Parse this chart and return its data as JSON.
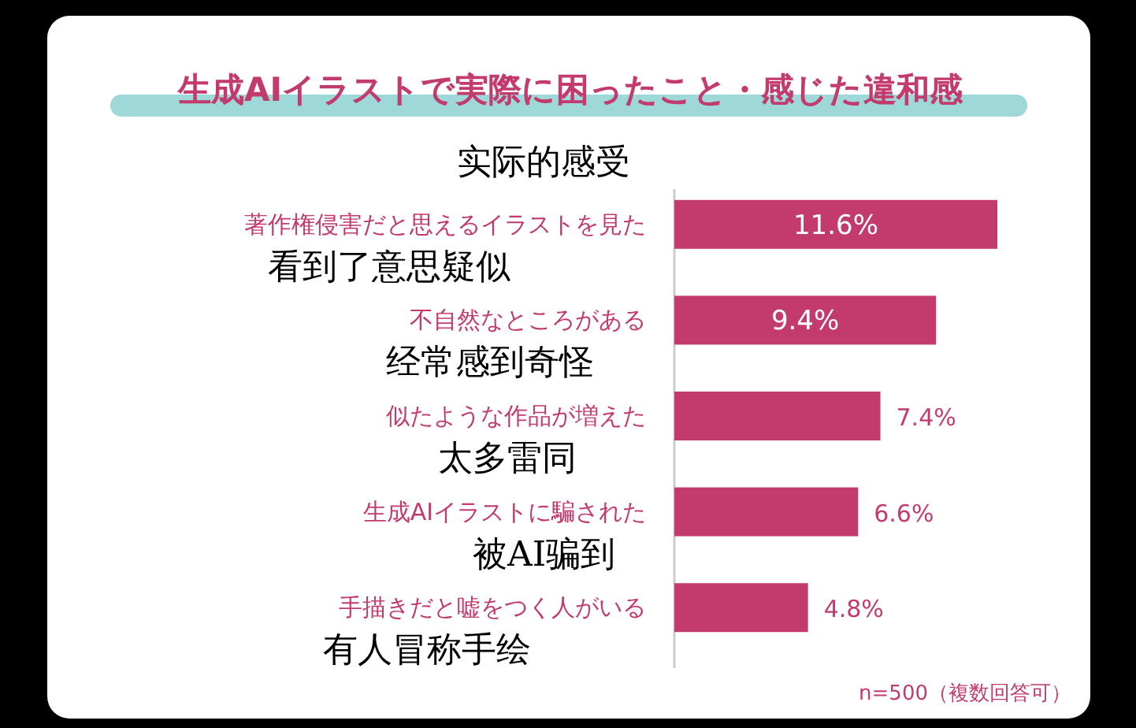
{
  "chart_data": {
    "type": "bar",
    "orientation": "horizontal",
    "title": "生成AIイラストで実際に困ったこと・感じた違和感",
    "subtitle": "实际的感受",
    "categories": [
      "著作権侵害だと思えるイラストを見た",
      "不自然なところがある",
      "似たような作品が増えた",
      "生成AIイラストに騙された",
      "手描きだと嘘をつく人がいる"
    ],
    "values": [
      11.6,
      9.4,
      7.4,
      6.6,
      4.8
    ],
    "color": "#c23b6c",
    "value_labels": [
      "11.6%",
      "9.4%",
      "7.4%",
      "6.6%",
      "4.8%"
    ],
    "annotations": [
      "看到了意思疑似",
      "经常感到奇怪",
      "太多雷同",
      "被AI骗到",
      "有人冒称手绘",
      "n=500（複数回答可）"
    ]
  }
}
